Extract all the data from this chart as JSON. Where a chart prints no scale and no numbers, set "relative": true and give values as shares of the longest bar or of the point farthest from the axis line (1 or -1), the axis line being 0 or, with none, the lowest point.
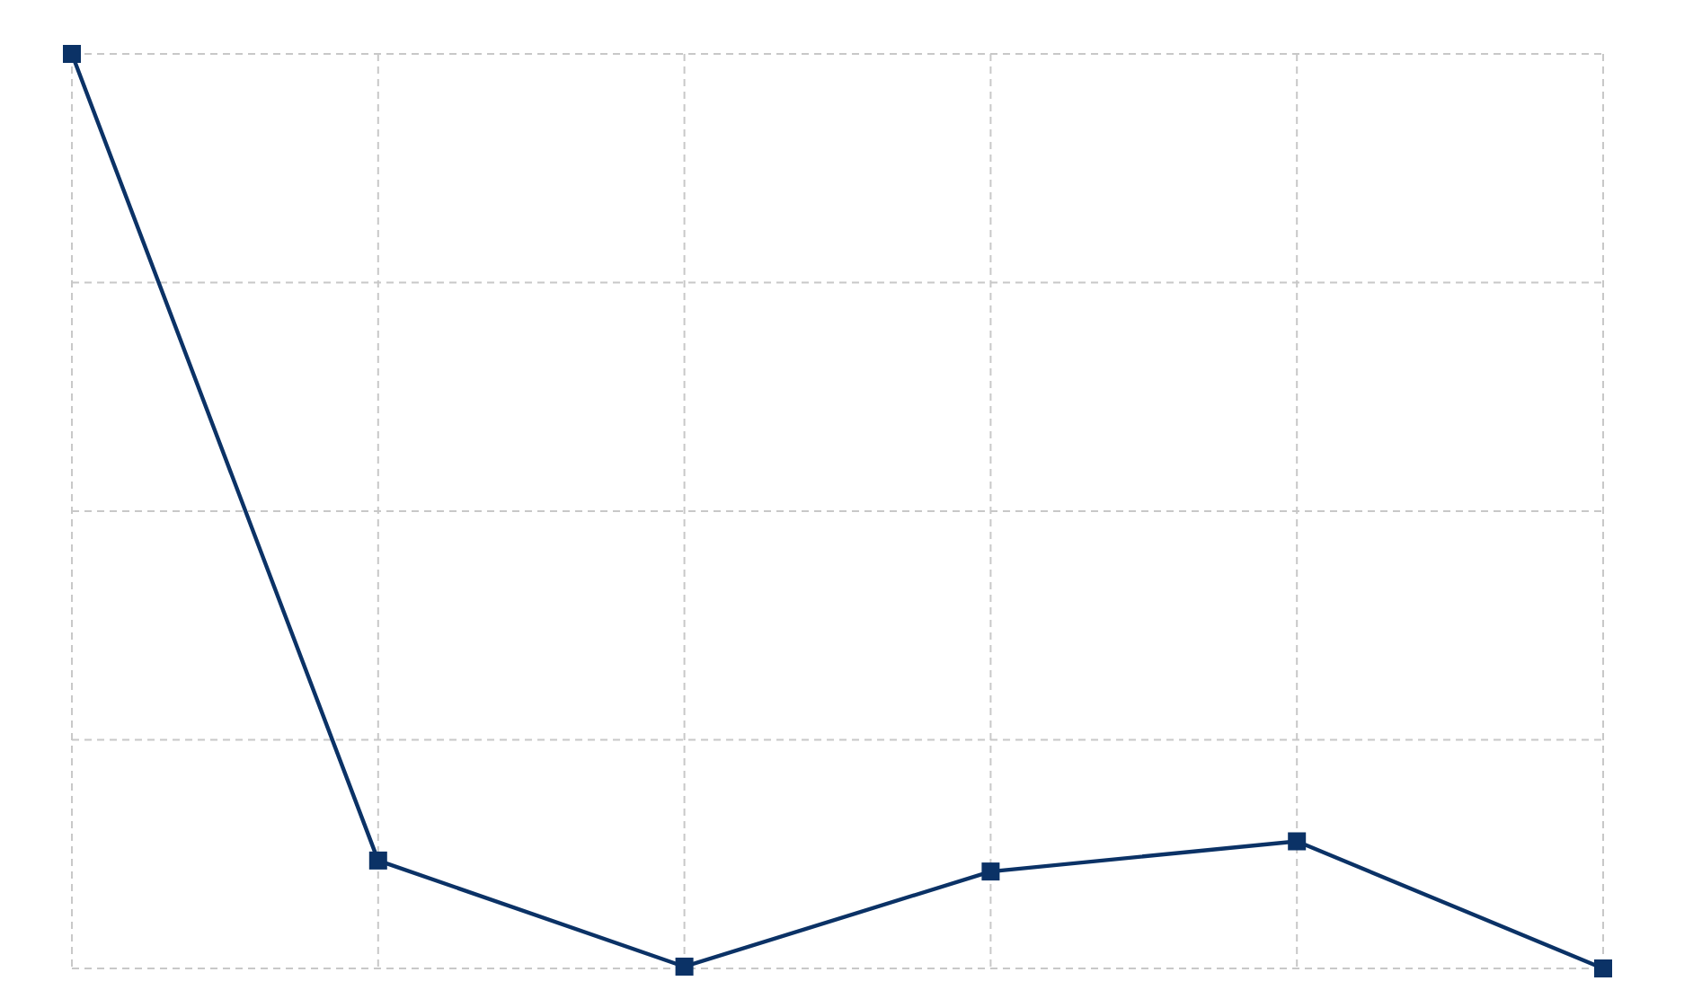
{
  "chart_data": {
    "type": "line",
    "relative": true,
    "categories": [
      null,
      null,
      null,
      null,
      null,
      null
    ],
    "series": [
      {
        "color": "#0b3266",
        "values": [
          1,
          0.118,
          0.002,
          0.106,
          0.139,
          0
        ]
      }
    ],
    "marker": "square",
    "line_style": "solid",
    "grid": true
  }
}
